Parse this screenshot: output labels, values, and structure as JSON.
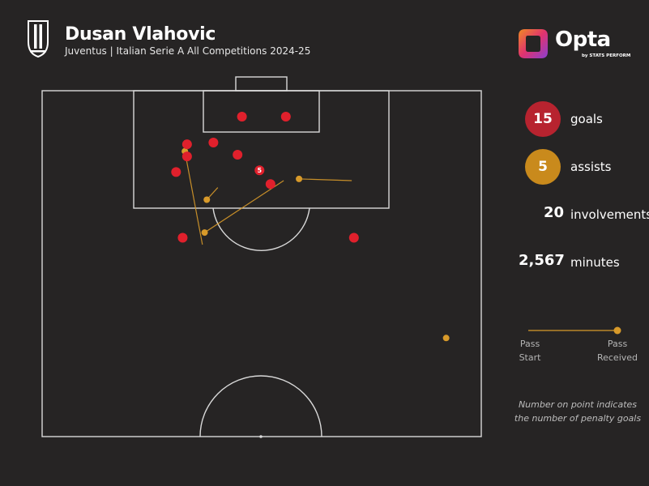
{
  "header": {
    "player_name": "Dusan Vlahovic",
    "subtitle": "Juventus | Italian Serie A All Competitions 2024-25",
    "crest_icon": "juventus-crest-icon"
  },
  "brand": {
    "name": "Opta",
    "sub": "by STATS PERFORM",
    "logo_icon": "opta-logo-icon"
  },
  "stats": {
    "goals": {
      "value": "15",
      "label": "goals",
      "color": "#b7232f"
    },
    "assists": {
      "value": "5",
      "label": "assists",
      "color": "#c98a1c"
    },
    "involvements": {
      "value": "20",
      "label": "involvements"
    },
    "minutes": {
      "value": "2,567",
      "label": "minutes"
    }
  },
  "legend": {
    "pass_start": "Pass\nStart",
    "pass_received": "Pass\nReceived",
    "note": "Number on point indicates the number of penalty goals"
  },
  "colors": {
    "background": "#262424",
    "pitch_lines": "#d9d9d9",
    "goal": "#e0202c",
    "assist": "#d89a2a"
  },
  "chart_data": {
    "type": "scatter",
    "title": "",
    "coordinate_system": "pitch attacking half, x = across pitch from left touchline (0-100), y = distance from goal line (0-100)",
    "series": [
      {
        "name": "goals",
        "points": [
          {
            "x": 45.5,
            "y": 7.5
          },
          {
            "x": 55.5,
            "y": 7.5
          },
          {
            "x": 39.0,
            "y": 15.0
          },
          {
            "x": 33.0,
            "y": 15.5
          },
          {
            "x": 33.0,
            "y": 19.0
          },
          {
            "x": 44.5,
            "y": 18.5
          },
          {
            "x": 30.5,
            "y": 23.5
          },
          {
            "x": 49.5,
            "y": 23.0,
            "penalty_goals": 5
          },
          {
            "x": 52.0,
            "y": 27.0
          },
          {
            "x": 32.0,
            "y": 42.5
          },
          {
            "x": 71.0,
            "y": 42.5
          }
        ]
      },
      {
        "name": "assists",
        "passes": [
          {
            "start": {
              "x": 36.5,
              "y": 44.5
            },
            "end": {
              "x": 32.5,
              "y": 17.5
            }
          },
          {
            "start": {
              "x": 40.0,
              "y": 28.0
            },
            "end": {
              "x": 37.5,
              "y": 31.5
            }
          },
          {
            "x_note": "",
            "start": {
              "x": 55.0,
              "y": 26.0
            },
            "end": {
              "x": 37.0,
              "y": 41.0
            }
          },
          {
            "start": {
              "x": 70.5,
              "y": 26.0
            },
            "end": {
              "x": 58.5,
              "y": 25.5
            }
          },
          {
            "start": {
              "x": 92.0,
              "y": 71.5
            },
            "end": {
              "x": 92.0,
              "y": 71.5
            }
          }
        ]
      }
    ]
  }
}
